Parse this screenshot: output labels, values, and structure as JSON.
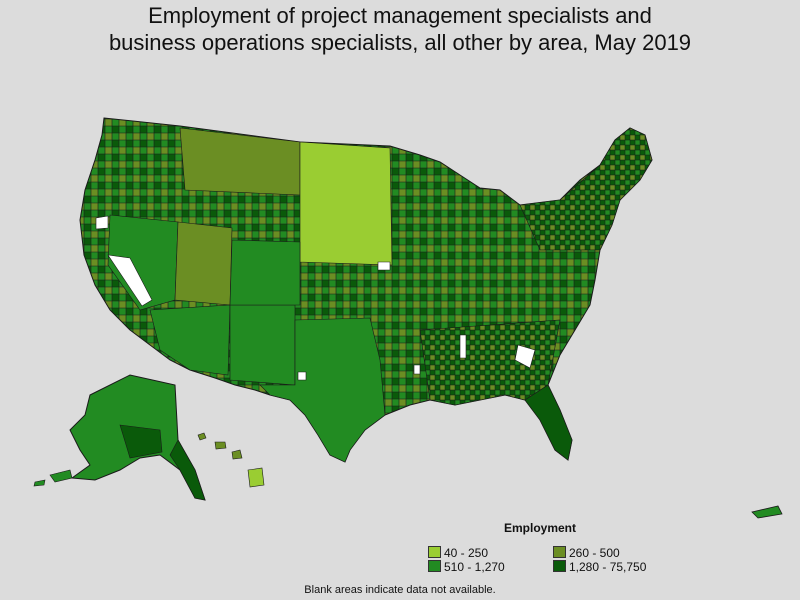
{
  "title_line1": "Employment of project management specialists and",
  "title_line2": "business operations specialists, all other by area, May 2019",
  "legend": {
    "title": "Employment",
    "items": [
      {
        "label": "40 - 250",
        "color": "#9acd32"
      },
      {
        "label": "260 - 500",
        "color": "#6b8e23"
      },
      {
        "label": "510 - 1,270",
        "color": "#228b22"
      },
      {
        "label": "1,280 - 75,750",
        "color": "#0a5a0a"
      }
    ]
  },
  "note": "Blank areas indicate data not available.",
  "colors": {
    "background": "#dcdcdc",
    "no_data": "#ffffff",
    "border": "#1a1a1a"
  }
}
